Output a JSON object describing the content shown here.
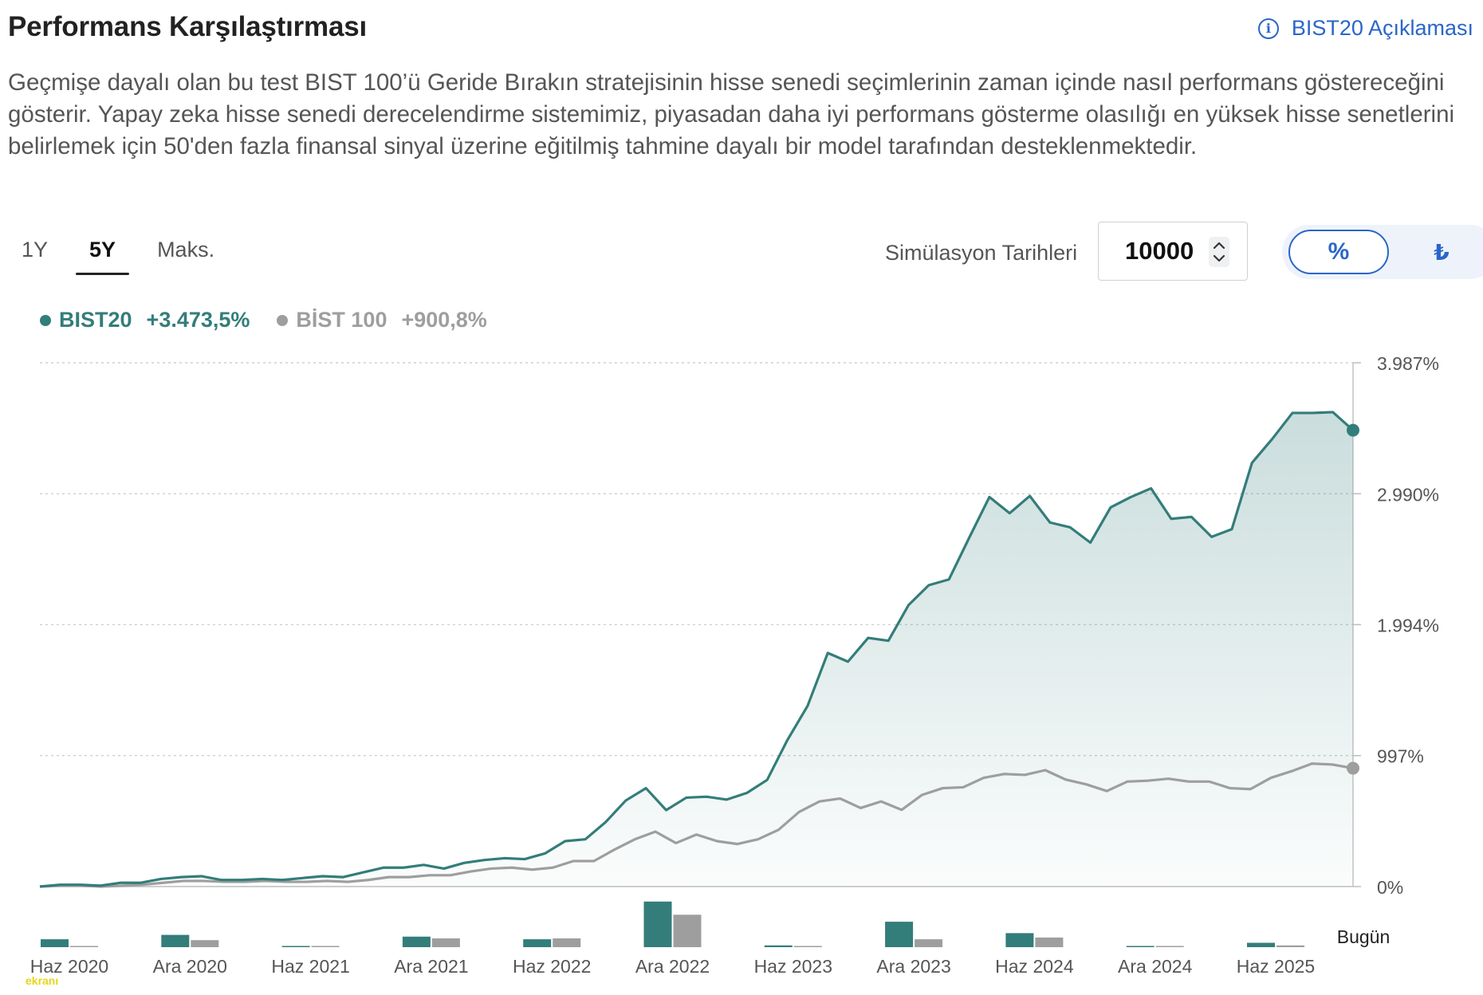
{
  "header": {
    "title": "Performans Karşılaştırması",
    "explain_link": "BIST20 Açıklaması",
    "description": "Geçmişe dayalı olan bu test BIST 100’ü Geride Bırakın stratejisinin hisse senedi seçimlerinin zaman içinde nasıl performans göstereceğini gösterir. Yapay zeka hisse senedi derecelendirme sistemimiz, piyasadan daha iyi performans gösterme olasılığı en yüksek hisse senetlerini belirlemek için 50'den fazla finansal sinyal üzerine eğitilmiş tahmine dayalı bir model tarafından desteklenmektedir."
  },
  "tabs": [
    {
      "label": "1Y",
      "active": false
    },
    {
      "label": "5Y",
      "active": true
    },
    {
      "label": "Maks.",
      "active": false
    }
  ],
  "simulation": {
    "label": "Simülasyon Tarihleri",
    "value": "10000"
  },
  "toggle": {
    "percent": "%",
    "lira": "₺"
  },
  "watermark": "ekranı",
  "colors": {
    "bist20": "#337d7a",
    "bist100": "#9e9e9e",
    "accent": "#2a66c8"
  },
  "legend": [
    {
      "name": "BIST20",
      "value": "+3.473,5%",
      "color": "#337d7a"
    },
    {
      "name": "BİST 100",
      "value": "+900,8%",
      "color": "#9e9e9e"
    }
  ],
  "chart_data": {
    "type": "line",
    "ylim": [
      0,
      3987
    ],
    "y_ticks": [
      0,
      997,
      1994,
      2990,
      3987
    ],
    "y_tick_labels": [
      "0%",
      "997%",
      "1.994%",
      "2.990%",
      "3.987%"
    ],
    "x_tick_labels": [
      "Haz 2020",
      "Ara 2020",
      "Haz 2021",
      "Ara 2021",
      "Haz 2022",
      "Ara 2022",
      "Haz 2023",
      "Ara 2023",
      "Haz 2024",
      "Ara 2024",
      "Haz 2025"
    ],
    "end_label": "Bugün",
    "grid": true,
    "series": [
      {
        "name": "BIST20",
        "end_value": 3473.5,
        "values": [
          0,
          14,
          14,
          7,
          29,
          29,
          58,
          72,
          79,
          50,
          50,
          58,
          50,
          65,
          79,
          72,
          108,
          144,
          144,
          165,
          137,
          180,
          202,
          216,
          209,
          252,
          346,
          360,
          490,
          655,
          749,
          582,
          677,
          684,
          662,
          713,
          812,
          1115,
          1375,
          1778,
          1712,
          1893,
          1871,
          2143,
          2294,
          2338,
          2655,
          2965,
          2842,
          2973,
          2771,
          2734,
          2618,
          2886,
          2965,
          3031,
          2799,
          2814,
          2662,
          2720,
          3226,
          3407,
          3605,
          3605,
          3611,
          3473.5
        ]
      },
      {
        "name": "BİST 100",
        "end_value": 900.8,
        "values": [
          0,
          7,
          7,
          0,
          7,
          14,
          29,
          43,
          43,
          36,
          36,
          43,
          36,
          36,
          43,
          36,
          50,
          72,
          72,
          86,
          86,
          115,
          137,
          144,
          129,
          144,
          194,
          194,
          281,
          360,
          418,
          331,
          396,
          346,
          324,
          360,
          432,
          568,
          648,
          670,
          598,
          648,
          584,
          698,
          749,
          756,
          828,
          857,
          850,
          886,
          814,
          778,
          727,
          799,
          806,
          821,
          799,
          799,
          749,
          742,
          828,
          878,
          936,
          929,
          900.8
        ]
      }
    ],
    "bars": {
      "labels": [
        "Haz 2020",
        "Ara 2020",
        "Haz 2021",
        "Ara 2021",
        "Haz 2022",
        "Ara 2022",
        "Haz 2023",
        "Ara 2023",
        "Haz 2024",
        "Ara 2024",
        "Haz 2025"
      ],
      "bist20": [
        9,
        14,
        0,
        12,
        9,
        52,
        2,
        29,
        16,
        1,
        5
      ],
      "bist100": [
        1,
        8,
        1,
        10,
        10,
        37,
        1,
        9,
        11,
        1,
        2
      ]
    }
  }
}
